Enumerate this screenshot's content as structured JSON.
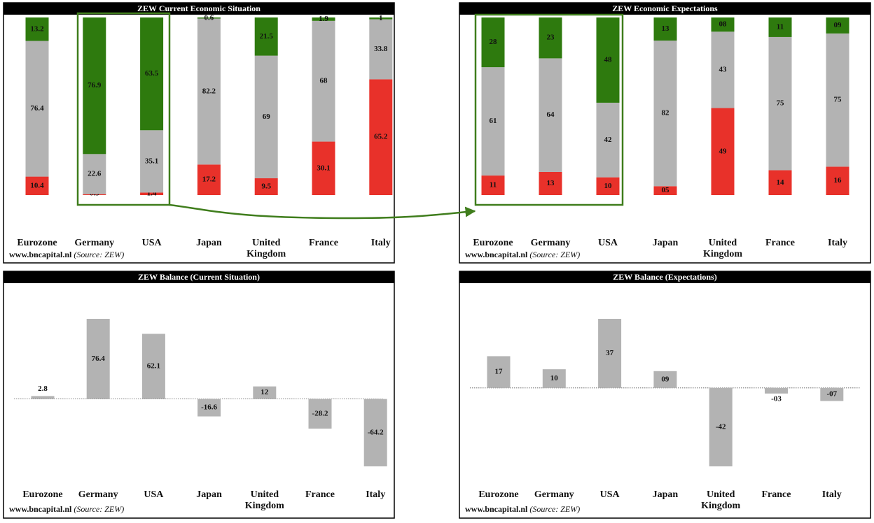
{
  "chart_data": [
    {
      "type": "bar",
      "stacked": true,
      "title": "ZEW Current Economic Situation",
      "categories": [
        "Eurozone",
        "Germany",
        "USA",
        "Japan",
        "United Kingdom",
        "France",
        "Italy"
      ],
      "series": [
        {
          "color": "#e8312a",
          "values": [
            10.4,
            0.5,
            1.4,
            17.2,
            9.5,
            30.1,
            65.2
          ]
        },
        {
          "color": "#b3b3b3",
          "values": [
            76.4,
            22.6,
            35.1,
            82.2,
            69,
            68,
            33.8
          ]
        },
        {
          "color": "#2e7a0e",
          "values": [
            13.2,
            76.9,
            63.5,
            0.6,
            21.5,
            1.9,
            1
          ]
        }
      ],
      "source": "www.bncapital.nl",
      "source_note": "(Source: ZEW)"
    },
    {
      "type": "bar",
      "stacked": true,
      "title": "ZEW Economic Expectations",
      "categories": [
        "Eurozone",
        "Germany",
        "USA",
        "Japan",
        "United Kingdom",
        "France",
        "Italy"
      ],
      "series": [
        {
          "color": "#e8312a",
          "values": [
            11,
            13,
            10,
            5,
            49,
            14,
            16
          ],
          "value_labels": [
            "11",
            "13",
            "10",
            "05",
            "49",
            "14",
            "16"
          ]
        },
        {
          "color": "#b3b3b3",
          "values": [
            61,
            64,
            42,
            82,
            43,
            75,
            75
          ]
        },
        {
          "color": "#2e7a0e",
          "values": [
            28,
            23,
            48,
            13,
            8,
            11,
            9
          ],
          "value_labels": [
            "28",
            "23",
            "48",
            "13",
            "08",
            "11",
            "09"
          ]
        }
      ],
      "source": "www.bncapital.nl",
      "source_note": "(Source: ZEW)"
    },
    {
      "type": "bar",
      "title": "ZEW Balance (Current Situation)",
      "categories": [
        "Eurozone",
        "Germany",
        "USA",
        "Japan",
        "United Kingdom",
        "France",
        "Italy"
      ],
      "values": [
        2.8,
        76.4,
        62.1,
        -16.6,
        12,
        -28.2,
        -64.2
      ],
      "color": "#b3b3b3",
      "source": "www.bncapital.nl",
      "source_note": "(Source: ZEW)"
    },
    {
      "type": "bar",
      "title": "ZEW Balance (Expectations)",
      "categories": [
        "Eurozone",
        "Germany",
        "USA",
        "Japan",
        "United Kingdom",
        "France",
        "Italy"
      ],
      "values": [
        17,
        10,
        37,
        9,
        -42,
        -3,
        -7
      ],
      "value_labels": [
        "17",
        "10",
        "37",
        "09",
        "-42",
        "-03",
        "-07"
      ],
      "color": "#b3b3b3",
      "source": "www.bncapital.nl",
      "source_note": "(Source: ZEW)"
    }
  ]
}
